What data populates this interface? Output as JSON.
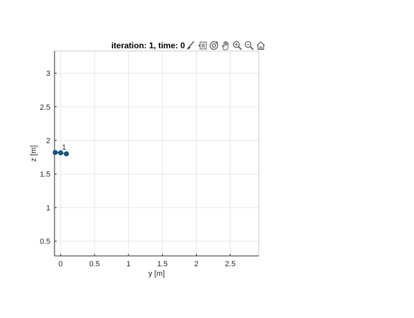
{
  "figure": {
    "background": "#ffffff",
    "axes_background": "#ffffff",
    "grid_color": "#e6e6e6",
    "axis_color": "#262626"
  },
  "toolbar": {
    "buttons": [
      {
        "icon": "brush-icon",
        "tooltip": "Brush"
      },
      {
        "icon": "data-tips-icon",
        "tooltip": "Data Tips"
      },
      {
        "icon": "rotate-3d-icon",
        "tooltip": "Rotate 3D"
      },
      {
        "icon": "pan-hand-icon",
        "tooltip": "Pan"
      },
      {
        "icon": "zoom-in-icon",
        "tooltip": "Zoom In"
      },
      {
        "icon": "zoom-out-icon",
        "tooltip": "Zoom Out"
      },
      {
        "icon": "home-icon",
        "tooltip": "Restore View"
      }
    ]
  },
  "chart_data": {
    "type": "scatter",
    "title": "iteration: 1, time: 0",
    "xlabel": "y [m]",
    "ylabel": "z [m]",
    "xlim": [
      -0.09,
      2.92
    ],
    "ylim": [
      0.28,
      3.33
    ],
    "xticks": [
      0,
      0.5,
      1,
      1.5,
      2,
      2.5
    ],
    "xtick_labels": [
      "0",
      "0.5",
      "1",
      "1.5",
      "2",
      "2.5"
    ],
    "yticks": [
      0.5,
      1,
      1.5,
      2,
      2.5,
      3
    ],
    "ytick_labels": [
      "0.5",
      "1",
      "1.5",
      "2",
      "2.5",
      "3"
    ],
    "grid": true,
    "series": [
      {
        "color": "#0e5a8a",
        "marker": "circle",
        "points": [
          {
            "x": -0.08,
            "y": 1.82
          },
          {
            "x": 0.0,
            "y": 1.815
          },
          {
            "x": 0.085,
            "y": 1.8
          }
        ],
        "links": [
          [
            0,
            1
          ],
          [
            1,
            2
          ]
        ]
      }
    ],
    "annotations": [
      {
        "text": "1",
        "x": 0.05,
        "y": 1.86
      }
    ]
  }
}
